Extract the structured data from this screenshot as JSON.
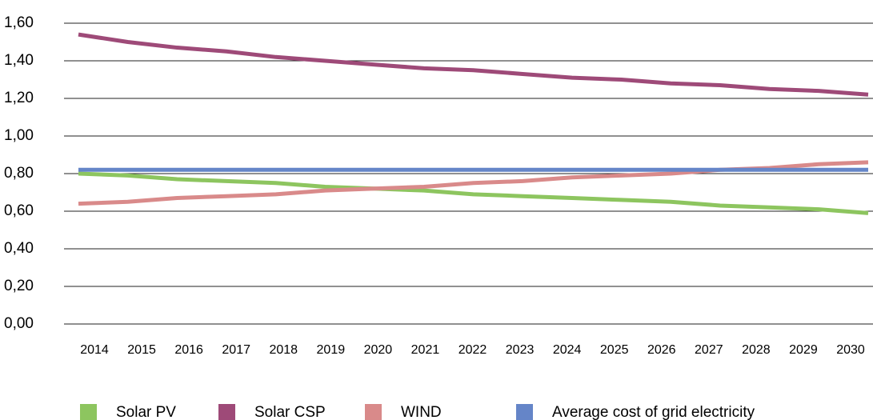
{
  "chart_data": {
    "type": "line",
    "categories": [
      "2014",
      "2015",
      "2016",
      "2017",
      "2018",
      "2019",
      "2020",
      "2021",
      "2022",
      "2023",
      "2024",
      "2025",
      "2026",
      "2027",
      "2028",
      "2029",
      "2030"
    ],
    "series": [
      {
        "name": "Solar PV",
        "color": "#8dc55f",
        "values": [
          0.8,
          0.79,
          0.77,
          0.76,
          0.75,
          0.73,
          0.72,
          0.71,
          0.69,
          0.68,
          0.67,
          0.66,
          0.65,
          0.63,
          0.62,
          0.61,
          0.59
        ]
      },
      {
        "name": "Solar CSP",
        "color": "#9e4a78",
        "values": [
          1.54,
          1.5,
          1.47,
          1.45,
          1.42,
          1.4,
          1.38,
          1.36,
          1.35,
          1.33,
          1.31,
          1.3,
          1.28,
          1.27,
          1.25,
          1.24,
          1.22
        ]
      },
      {
        "name": "WIND",
        "color": "#d98a8a",
        "values": [
          0.64,
          0.65,
          0.67,
          0.68,
          0.69,
          0.71,
          0.72,
          0.73,
          0.75,
          0.76,
          0.78,
          0.79,
          0.8,
          0.82,
          0.83,
          0.85,
          0.86
        ]
      },
      {
        "name": "Average cost of grid electricity",
        "color": "#6585c8",
        "values": [
          0.82,
          0.82,
          0.82,
          0.82,
          0.82,
          0.82,
          0.82,
          0.82,
          0.82,
          0.82,
          0.82,
          0.82,
          0.82,
          0.82,
          0.82,
          0.82,
          0.82
        ]
      }
    ],
    "ylim": [
      0,
      1.6
    ],
    "yticks": [
      {
        "value": 0,
        "label": "0,00"
      },
      {
        "value": 0.2,
        "label": "0,20"
      },
      {
        "value": 0.4,
        "label": "0,40"
      },
      {
        "value": 0.6,
        "label": "0,60"
      },
      {
        "value": 0.8,
        "label": "0,80"
      },
      {
        "value": 1.0,
        "label": "1,00"
      },
      {
        "value": 1.2,
        "label": "1,20"
      },
      {
        "value": 1.4,
        "label": "1,40"
      },
      {
        "value": 1.6,
        "label": "1,60"
      }
    ],
    "grid": true,
    "legend": "bottom"
  }
}
